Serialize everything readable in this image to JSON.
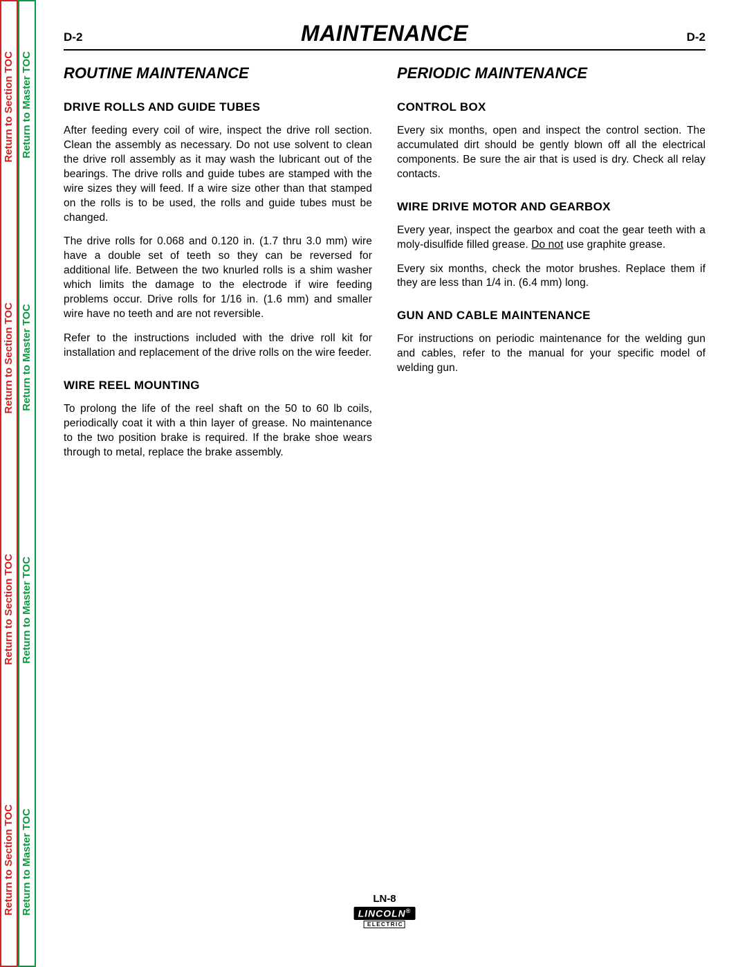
{
  "side_tabs": {
    "section_label": "Return to Section TOC",
    "master_label": "Return to Master TOC",
    "section_color": "#d4201f",
    "master_color": "#0a9a3f",
    "repeat_count": 4
  },
  "header": {
    "page_num_left": "D-2",
    "title": "MAINTENANCE",
    "page_num_right": "D-2"
  },
  "left_column": {
    "heading": "ROUTINE MAINTENANCE",
    "sections": [
      {
        "title": "DRIVE ROLLS AND GUIDE TUBES",
        "paragraphs": [
          "After feeding every coil of wire, inspect the drive roll section. Clean the assembly as necessary. Do not use solvent to clean the drive roll assembly as it may wash the lubricant out of the bearings. The drive rolls and guide tubes are stamped with the wire sizes they will feed. If a wire size other than that stamped on the rolls is to be used, the rolls and guide tubes must be changed.",
          "The drive rolls for 0.068 and 0.120 in. (1.7 thru 3.0 mm) wire have a double set of teeth so they can be reversed for additional life. Between the two knurled rolls is a shim washer which limits the damage to the electrode if wire feeding problems occur. Drive rolls for 1/16 in. (1.6 mm) and smaller wire have no teeth and are not reversible.",
          "Refer to the instructions included with the drive roll kit for installation and replacement of the drive rolls on the wire feeder."
        ]
      },
      {
        "title": "WIRE REEL MOUNTING",
        "paragraphs": [
          "To prolong the life of the reel shaft on the 50 to 60 lb coils, periodically coat it with a thin layer of grease. No maintenance to the two position brake is required. If the brake shoe wears through to metal, replace the brake assembly."
        ]
      }
    ]
  },
  "right_column": {
    "heading": "PERIODIC MAINTENANCE",
    "sections": [
      {
        "title": "CONTROL BOX",
        "paragraphs": [
          "Every six months, open and inspect the control section. The accumulated dirt should be gently blown off all the electrical components. Be sure the air that is used is dry. Check all relay contacts."
        ]
      },
      {
        "title": "WIRE DRIVE MOTOR AND GEARBOX",
        "paragraphs_html": [
          "Every year, inspect the gearbox and coat the gear teeth with a moly-disulfide filled grease. <span class=\"underline\">Do not</span> use graphite grease.",
          "Every six months, check the motor brushes. Replace them if they are less than 1/4 in. (6.4 mm) long."
        ]
      },
      {
        "title": "GUN AND CABLE MAINTENANCE",
        "paragraphs": [
          "For instructions on periodic maintenance for the welding gun and cables, refer to the manual for your specific model of welding gun."
        ]
      }
    ]
  },
  "footer": {
    "model": "LN-8",
    "logo_top": "LINCOLN",
    "logo_reg": "®",
    "logo_bottom": "ELECTRIC"
  }
}
